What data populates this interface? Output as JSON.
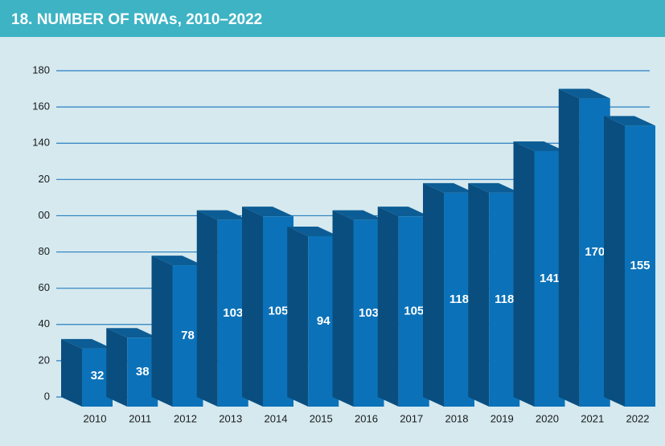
{
  "chart_data": {
    "type": "bar3d",
    "title": "18. NUMBER OF RWAs, 2010–2022",
    "categories": [
      "2010",
      "2011",
      "2012",
      "2013",
      "2014",
      "2015",
      "2016",
      "2017",
      "2018",
      "2019",
      "2020",
      "2021",
      "2022"
    ],
    "values": [
      32,
      38,
      78,
      103,
      105,
      94,
      103,
      105,
      118,
      118,
      141,
      170,
      155
    ],
    "color": "#0b72b9",
    "ylim": [
      0,
      180
    ],
    "yticks": [
      0,
      20,
      40,
      60,
      80,
      {
        "value": 100,
        "label": "00"
      },
      {
        "value": 120,
        "label": "20"
      },
      140,
      160,
      180
    ],
    "grid": true
  }
}
